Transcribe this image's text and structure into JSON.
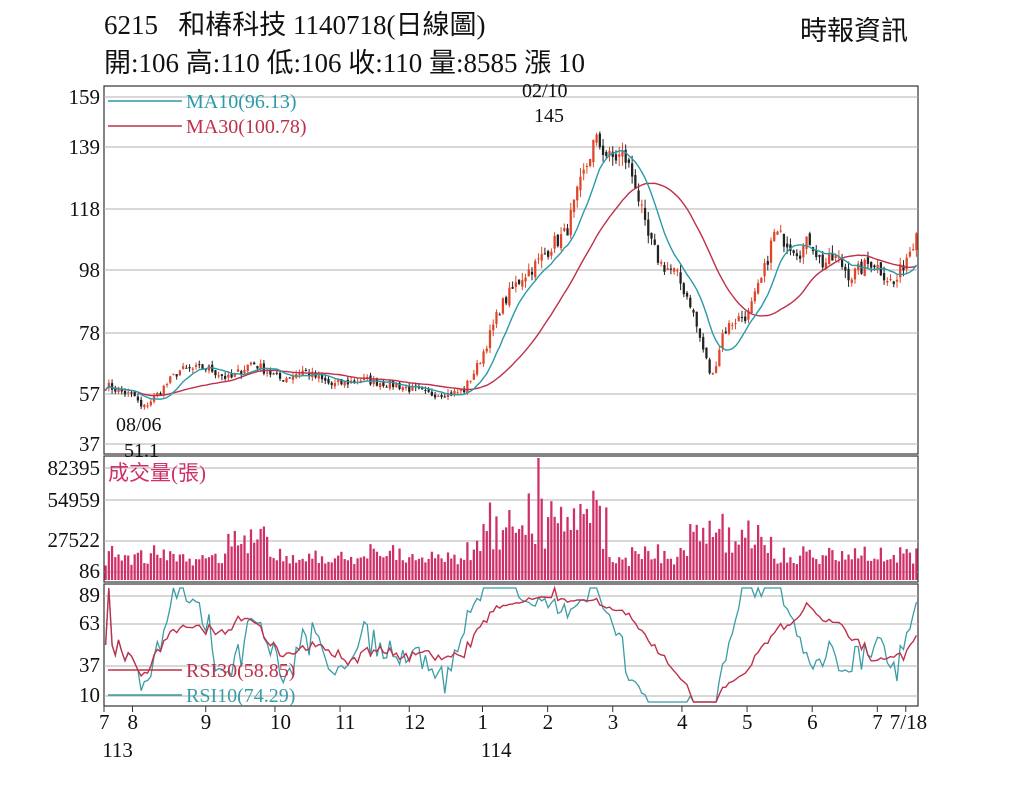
{
  "header": {
    "code": "6215",
    "name": "和椿科技",
    "date_label": "1140718(日線圖)",
    "stats": "開:106 高:110 低:106 收:110 量:8585 漲 10",
    "source": "時報資訊"
  },
  "colors": {
    "up": "#e0452a",
    "down": "#222222",
    "ma10": "#2a9aa8",
    "ma30": "#c0304a",
    "volume": "#d0306a",
    "rsi30": "#c0304a",
    "rsi10": "#3a9ca5",
    "grid": "#b0b0b0",
    "axis": "#333333"
  },
  "chart_data": [
    {
      "type": "candlestick",
      "panel": "price",
      "y_ticks": [
        "159",
        "139",
        "118",
        "98",
        "78",
        "57",
        "37"
      ],
      "y_tick_values": [
        159,
        139,
        118,
        98,
        78,
        57,
        37
      ],
      "ylim": [
        37,
        159
      ],
      "legend": [
        {
          "name": "MA10(96.13)",
          "color_key": "ma10"
        },
        {
          "name": "MA30(100.78)",
          "color_key": "ma30"
        }
      ],
      "annotations": [
        {
          "date": "02/10",
          "value": "145"
        },
        {
          "date": "08/06",
          "value": "51.1"
        }
      ],
      "key_points": [
        {
          "t": 0.0,
          "close": 60
        },
        {
          "t": 0.04,
          "close": 56
        },
        {
          "t": 0.05,
          "close": 51
        },
        {
          "t": 0.1,
          "close": 65
        },
        {
          "t": 0.14,
          "close": 66
        },
        {
          "t": 0.17,
          "close": 62
        },
        {
          "t": 0.2,
          "close": 68
        },
        {
          "t": 0.24,
          "close": 62
        },
        {
          "t": 0.27,
          "close": 65
        },
        {
          "t": 0.31,
          "close": 60
        },
        {
          "t": 0.35,
          "close": 62
        },
        {
          "t": 0.4,
          "close": 60
        },
        {
          "t": 0.44,
          "close": 57
        },
        {
          "t": 0.47,
          "close": 57
        },
        {
          "t": 0.49,
          "close": 58
        },
        {
          "t": 0.51,
          "close": 67
        },
        {
          "t": 0.54,
          "close": 86
        },
        {
          "t": 0.57,
          "close": 96
        },
        {
          "t": 0.59,
          "close": 100
        },
        {
          "t": 0.61,
          "close": 106
        },
        {
          "t": 0.63,
          "close": 110
        },
        {
          "t": 0.655,
          "close": 130
        },
        {
          "t": 0.67,
          "close": 142
        },
        {
          "t": 0.69,
          "close": 135
        },
        {
          "t": 0.71,
          "close": 136
        },
        {
          "t": 0.725,
          "close": 127
        },
        {
          "t": 0.74,
          "close": 110
        },
        {
          "t": 0.76,
          "close": 100
        },
        {
          "t": 0.78,
          "close": 97
        },
        {
          "t": 0.8,
          "close": 88
        },
        {
          "t": 0.815,
          "close": 75
        },
        {
          "t": 0.83,
          "close": 62
        },
        {
          "t": 0.845,
          "close": 78
        },
        {
          "t": 0.86,
          "close": 82
        },
        {
          "t": 0.88,
          "close": 84
        },
        {
          "t": 0.9,
          "close": 96
        },
        {
          "t": 0.915,
          "close": 110
        },
        {
          "t": 0.93,
          "close": 108
        },
        {
          "t": 0.95,
          "close": 104
        },
        {
          "t": 0.965,
          "close": 108
        },
        {
          "t": 0.98,
          "close": 100
        },
        {
          "t": 1.0,
          "close": 102
        },
        {
          "t": 1.02,
          "close": 96
        },
        {
          "t": 1.05,
          "close": 101
        },
        {
          "t": 1.08,
          "close": 93
        },
        {
          "t": 1.11,
          "close": 110
        }
      ]
    },
    {
      "type": "bar",
      "panel": "volume",
      "title": "成交量(張)",
      "y_ticks": [
        "82395",
        "54959",
        "27522",
        "86"
      ],
      "y_tick_values": [
        82395,
        54959,
        27522,
        86
      ],
      "ylim": [
        86,
        82395
      ]
    },
    {
      "type": "line",
      "panel": "rsi",
      "y_ticks": [
        "89",
        "63",
        "37",
        "10"
      ],
      "y_tick_values": [
        89,
        63,
        37,
        10
      ],
      "ylim": [
        10,
        89
      ],
      "legend": [
        {
          "name": "RSI30(58.85)",
          "color_key": "rsi30"
        },
        {
          "name": "RSI10(74.29)",
          "color_key": "rsi10"
        }
      ]
    }
  ],
  "x_axis": {
    "labels": [
      {
        "text": "7",
        "t": 0.0
      },
      {
        "text": "8",
        "t": 0.035
      },
      {
        "text": "9",
        "t": 0.125
      },
      {
        "text": "10",
        "t": 0.21
      },
      {
        "text": "11",
        "t": 0.29
      },
      {
        "text": "12",
        "t": 0.375
      },
      {
        "text": "1",
        "t": 0.465
      },
      {
        "text": "2",
        "t": 0.545
      },
      {
        "text": "3",
        "t": 0.625
      },
      {
        "text": "4",
        "t": 0.71
      },
      {
        "text": "5",
        "t": 0.79
      },
      {
        "text": "6",
        "t": 0.87
      },
      {
        "text": "7",
        "t": 0.95
      },
      {
        "text": "7/18",
        "t": 0.985
      }
    ],
    "year_labels": [
      {
        "text": "113",
        "t": 0.015
      },
      {
        "text": "114",
        "t": 0.48
      }
    ]
  }
}
